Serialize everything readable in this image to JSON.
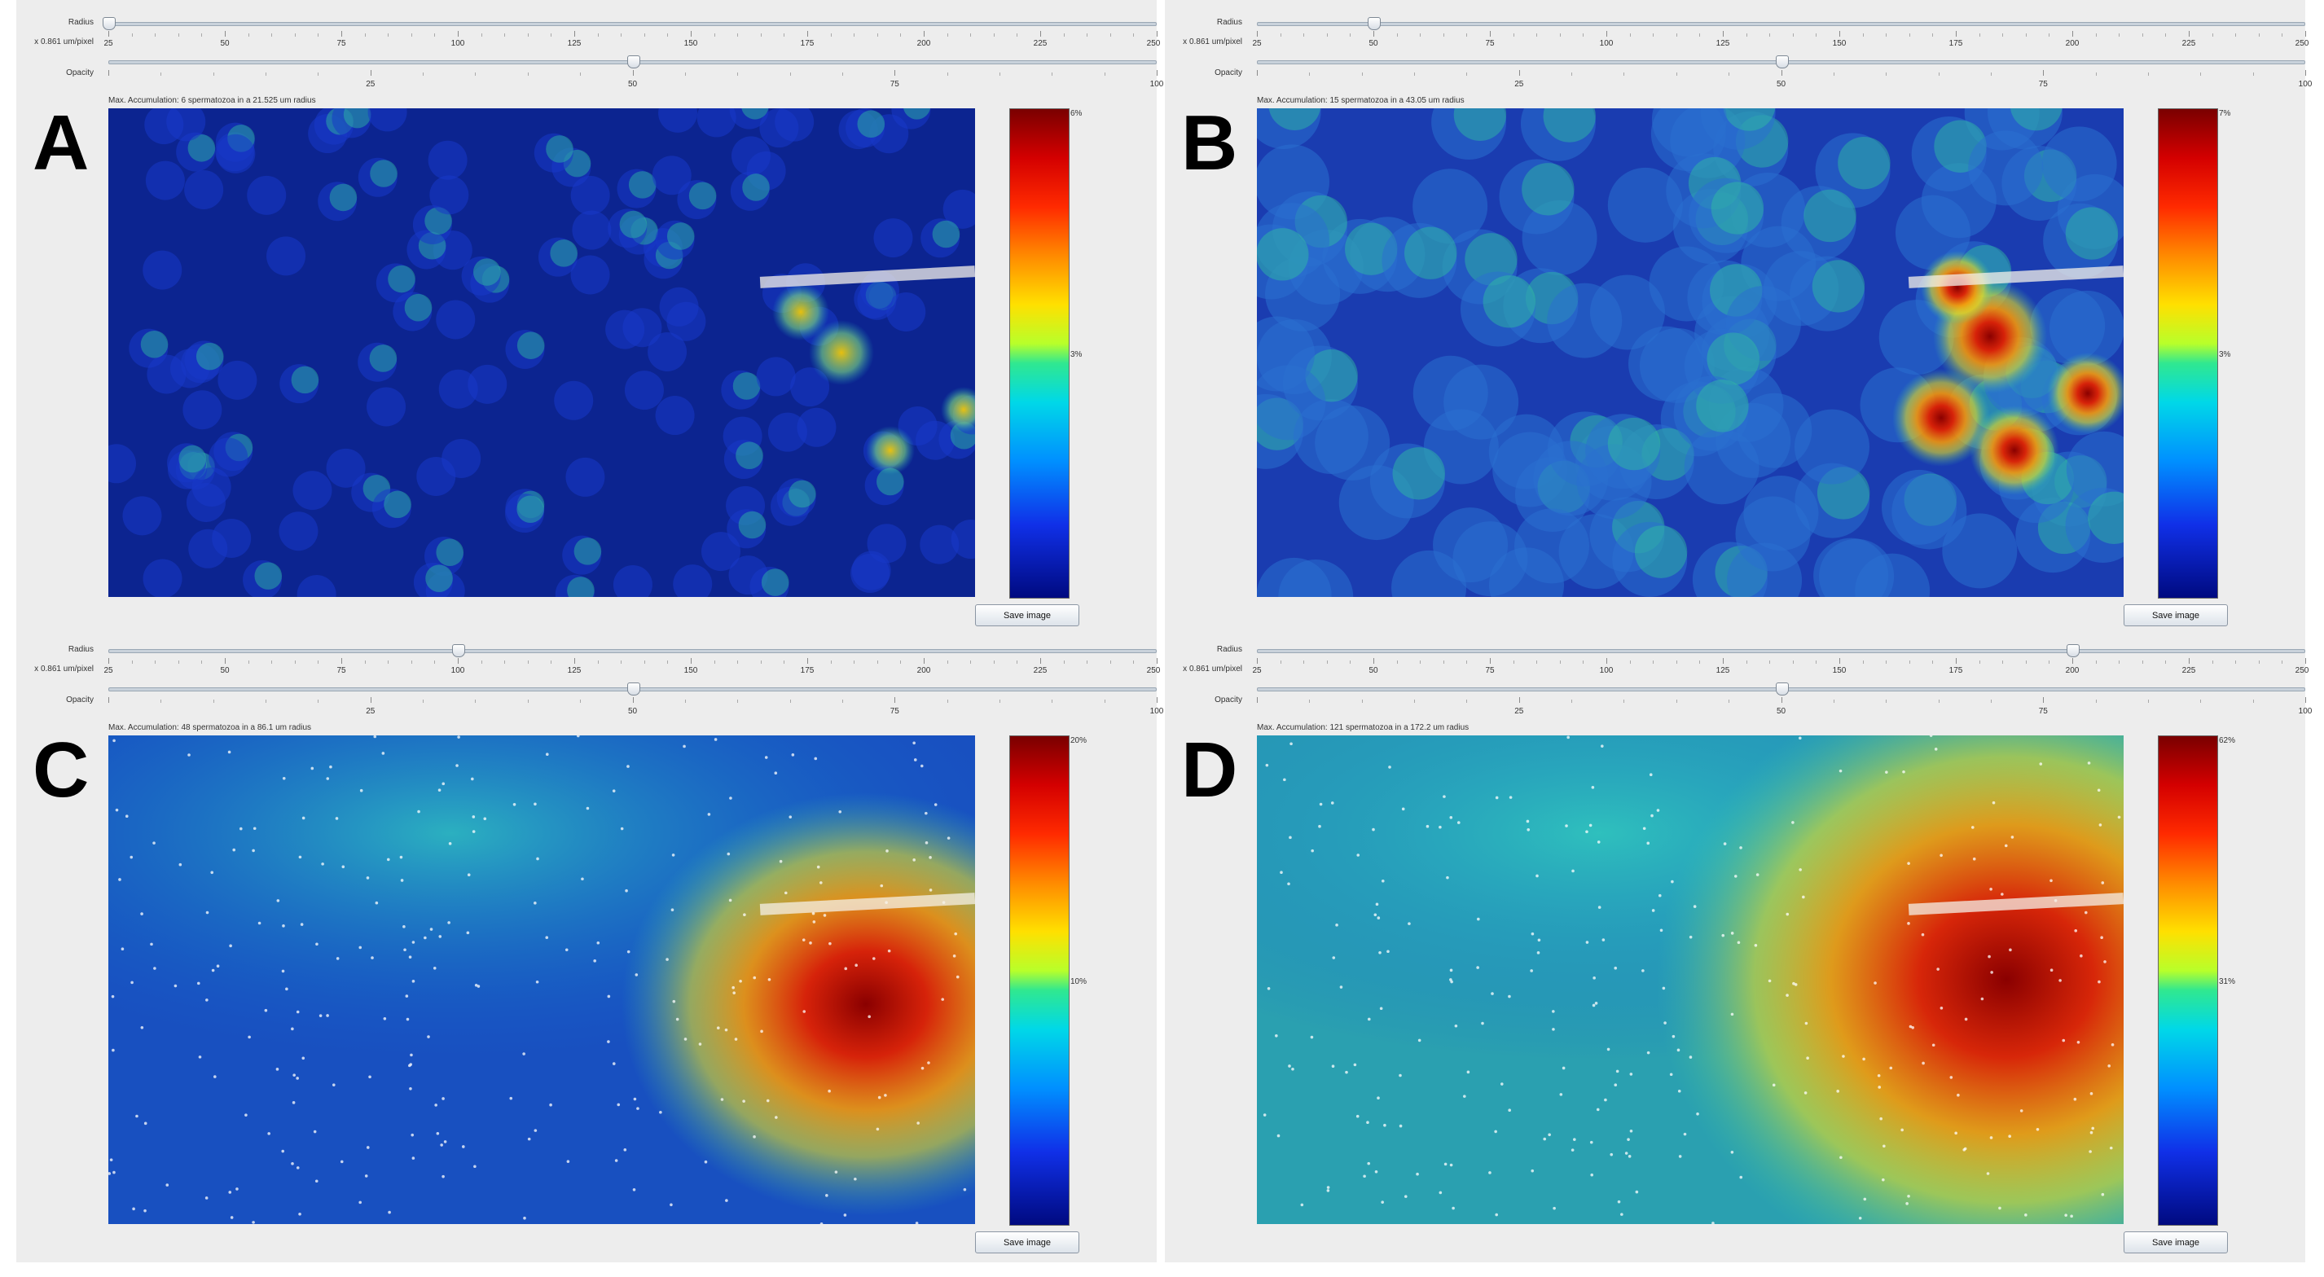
{
  "labels": {
    "radius": "Radius",
    "unit": "x 0.861 um/pixel",
    "opacity": "Opacity",
    "save": "Save image"
  },
  "radius_ticks": [
    "25",
    "50",
    "75",
    "100",
    "125",
    "150",
    "175",
    "200",
    "225",
    "250"
  ],
  "opacity_ticks": [
    "25",
    "50",
    "75",
    "100"
  ],
  "panels": [
    {
      "id": "A",
      "letter": "A",
      "status": "Max. Accumulation: 6 spermatozoa in a 21.525 um radius",
      "radius_value": 25,
      "opacity_value": 50,
      "colorbar_top": "6%",
      "colorbar_mid": "3%",
      "heat_level": "low"
    },
    {
      "id": "B",
      "letter": "B",
      "status": "Max. Accumulation: 15 spermatozoa in a 43.05 um radius",
      "radius_value": 50,
      "opacity_value": 50,
      "colorbar_top": "7%",
      "colorbar_mid": "3%",
      "heat_level": "medium"
    },
    {
      "id": "C",
      "letter": "C",
      "status": "Max. Accumulation: 48 spermatozoa in a 86.1 um radius",
      "radius_value": 100,
      "opacity_value": 50,
      "colorbar_top": "20%",
      "colorbar_mid": "10%",
      "heat_level": "high"
    },
    {
      "id": "D",
      "letter": "D",
      "status": "Max. Accumulation: 121 spermatozoa in a 172.2 um radius",
      "radius_value": 200,
      "opacity_value": 50,
      "colorbar_top": "62%",
      "colorbar_mid": "31%",
      "heat_level": "very-high"
    }
  ]
}
